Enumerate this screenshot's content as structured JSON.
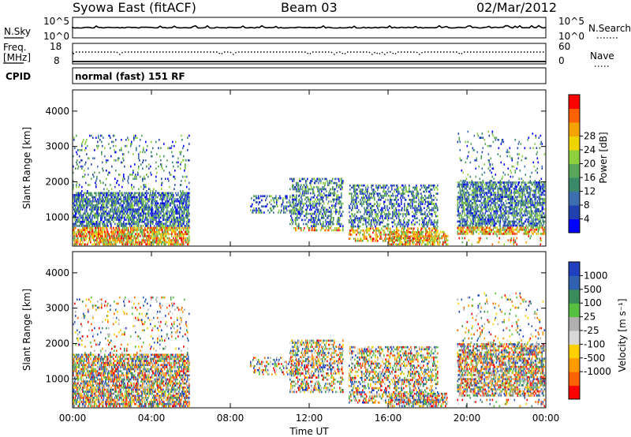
{
  "header": {
    "station": "Syowa East (fitACF)",
    "beam": "Beam 03",
    "date": "02/Mar/2012"
  },
  "top_panels": {
    "nsky_label": "N.Sky",
    "nsky_ticks": [
      "10^5",
      "10^0"
    ],
    "nsearch_label": "N.Search",
    "nsearch_ticks": [
      "10^5",
      "10^0"
    ],
    "freq_label": "Freq.",
    "freq_unit": "[MHz]",
    "freq_ticks": [
      "18",
      "8"
    ],
    "nave_label": "Nave",
    "nave_ticks": [
      "60",
      "0"
    ],
    "cpid_label": "CPID",
    "cpid_value": "normal (fast) 151 RF"
  },
  "colors": {
    "power_scale": [
      "#0000ff",
      "#2040b0",
      "#3c6eb0",
      "#3a8a6a",
      "#56a558",
      "#8ecf3c",
      "#f0d400",
      "#f5a300",
      "#ff6000",
      "#ff0000"
    ],
    "velocity_scale": [
      "#2040c0",
      "#3060b0",
      "#3a8a5a",
      "#58c040",
      "#b0b0b0",
      "#d8d8d8",
      "#ffd000",
      "#ff9a00",
      "#ff6000",
      "#ff0000"
    ]
  },
  "chart_data": [
    {
      "type": "heatmap",
      "name": "power",
      "xlabel": "",
      "ylabel": "Slant Range [km]",
      "ylim": [
        180,
        4600
      ],
      "y_ticks": [
        "1000",
        "2000",
        "3000",
        "4000"
      ],
      "x_ticks": [
        "00:00",
        "04:00",
        "08:00",
        "12:00",
        "16:00",
        "20:00",
        "00:00"
      ],
      "colorbar_label": "Power [dB]",
      "colorbar_ticks": [
        "4",
        "8",
        "12",
        "16",
        "20",
        "24",
        "28"
      ]
    },
    {
      "type": "heatmap",
      "name": "velocity",
      "xlabel": "Time UT",
      "ylabel": "Slant Range [km]",
      "ylim": [
        180,
        4600
      ],
      "y_ticks": [
        "1000",
        "2000",
        "3000",
        "4000"
      ],
      "x_ticks": [
        "00:00",
        "04:00",
        "08:00",
        "12:00",
        "16:00",
        "20:00",
        "00:00"
      ],
      "colorbar_label": "Velocity [m s⁻¹]",
      "colorbar_ticks": [
        "1000",
        "500",
        "100",
        "25",
        "-25",
        "-100",
        "-500",
        "-1000"
      ]
    }
  ]
}
